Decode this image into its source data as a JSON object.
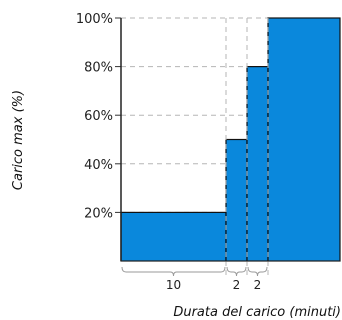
{
  "chart_data": {
    "type": "bar",
    "ylabel": "Carico max (%)",
    "xlabel": "Durata del carico (minuti)",
    "ylim": [
      0,
      100
    ],
    "y_ticks": [
      "20%",
      "40%",
      "60%",
      "80%",
      "100%"
    ],
    "y_tick_values": [
      20,
      40,
      60,
      80,
      100
    ],
    "grid": true,
    "bar_color": "#0a88dc",
    "bars": [
      {
        "load": 20,
        "duration": 10,
        "duration_label": "10"
      },
      {
        "load": 50,
        "duration": 2,
        "duration_label": "2"
      },
      {
        "load": 80,
        "duration": 2,
        "duration_label": "2"
      },
      {
        "load": 100
      }
    ]
  }
}
